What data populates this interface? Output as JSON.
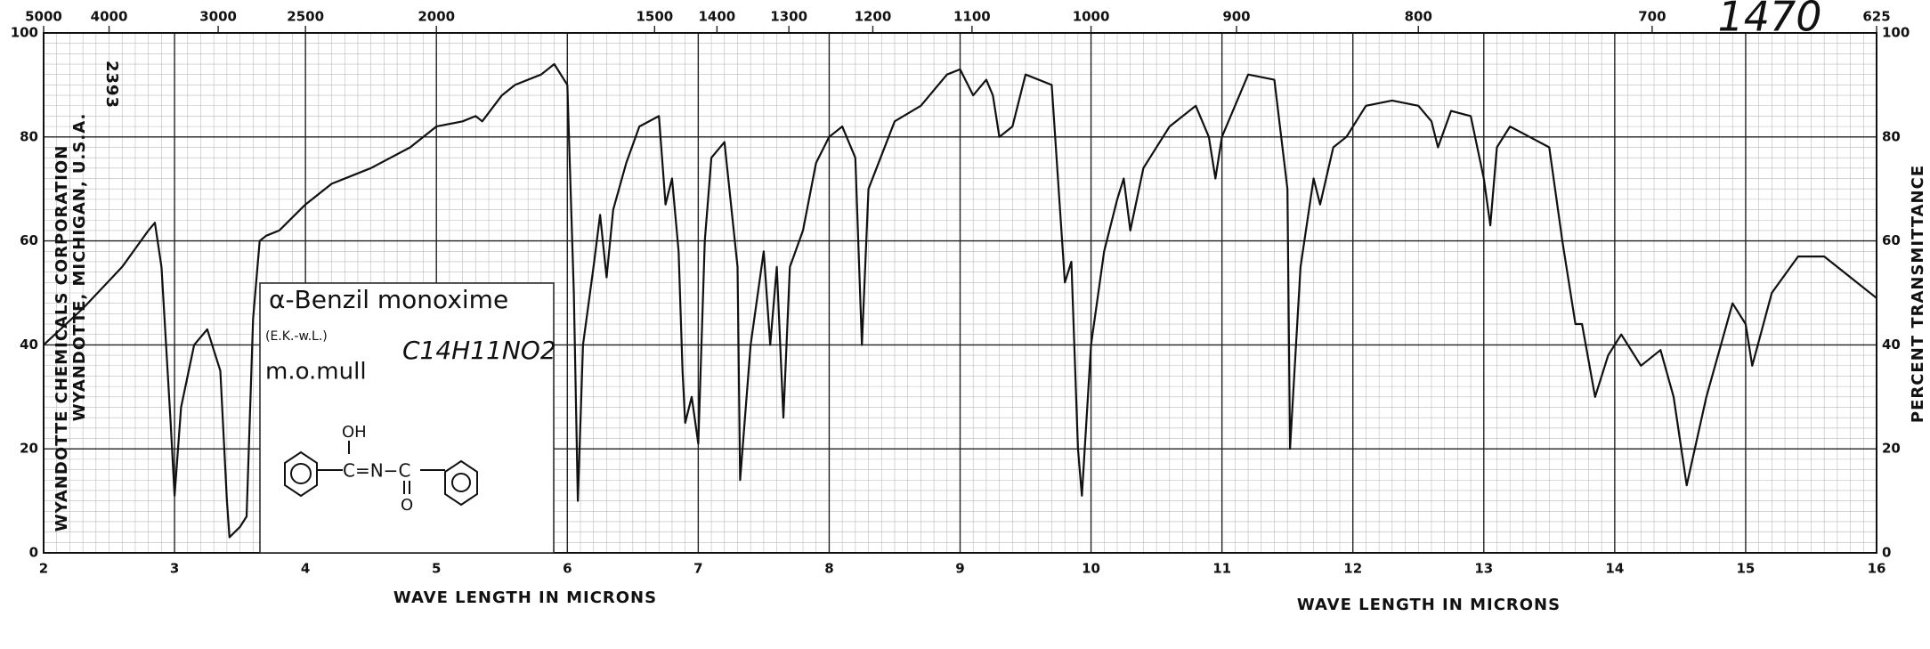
{
  "chart_data": {
    "type": "line",
    "company": "WYANDOTTE CHEMICALS CORPORATION",
    "location": "WYANDOTTE, MICHIGAN, U.S.A.",
    "chart_number": "2393",
    "sample_number": "1470",
    "compound": "α-Benzil monoxime",
    "source": "(E.K.-w.L.)",
    "phase": "m.o.mull",
    "formula": "C14H11NO2",
    "x_label_left": "WAVE LENGTH IN MICRONS",
    "x_label_right": "WAVE LENGTH IN MICRONS",
    "y_label": "PERCENT TRANSMITTANCE",
    "color": "#111111",
    "x": [
      2.0,
      2.3,
      2.6,
      2.8,
      2.85,
      2.9,
      2.97,
      3.0,
      3.05,
      3.15,
      3.25,
      3.35,
      3.4,
      3.42,
      3.5,
      3.55,
      3.6,
      3.65,
      3.7,
      3.8,
      4.0,
      4.2,
      4.5,
      4.8,
      5.0,
      5.2,
      5.3,
      5.35,
      5.5,
      5.6,
      5.8,
      5.9,
      6.0,
      6.05,
      6.08,
      6.12,
      6.2,
      6.25,
      6.3,
      6.35,
      6.45,
      6.55,
      6.7,
      6.75,
      6.8,
      6.85,
      6.88,
      6.9,
      6.95,
      7.0,
      7.05,
      7.1,
      7.2,
      7.3,
      7.32,
      7.4,
      7.5,
      7.55,
      7.6,
      7.65,
      7.7,
      7.8,
      7.9,
      8.0,
      8.1,
      8.2,
      8.25,
      8.3,
      8.5,
      8.7,
      8.9,
      9.0,
      9.1,
      9.2,
      9.25,
      9.3,
      9.4,
      9.5,
      9.7,
      9.8,
      9.85,
      9.9,
      9.93,
      10.0,
      10.1,
      10.2,
      10.25,
      10.3,
      10.4,
      10.6,
      10.8,
      10.9,
      10.95,
      11.0,
      11.2,
      11.4,
      11.5,
      11.52,
      11.6,
      11.7,
      11.75,
      11.85,
      11.95,
      12.1,
      12.3,
      12.5,
      12.6,
      12.65,
      12.75,
      12.9,
      13.0,
      13.05,
      13.1,
      13.2,
      13.35,
      13.5,
      13.6,
      13.7,
      13.75,
      13.85,
      13.95,
      14.05,
      14.2,
      14.35,
      14.45,
      14.55,
      14.7,
      14.9,
      15.0,
      15.05,
      15.2,
      15.4,
      15.6,
      15.8,
      16.0
    ],
    "values": [
      40,
      47,
      55,
      62,
      63.5,
      55,
      25,
      11,
      28,
      40,
      43,
      35,
      10,
      3,
      5,
      7,
      45,
      60,
      61,
      62,
      67,
      71,
      74,
      78,
      82,
      83,
      84,
      83,
      88,
      90,
      92,
      94,
      90,
      50,
      10,
      40,
      55,
      65,
      53,
      66,
      75,
      82,
      84,
      67,
      72,
      58,
      35,
      25,
      30,
      21,
      60,
      76,
      79,
      55,
      14,
      40,
      58,
      40,
      55,
      26,
      55,
      62,
      75,
      80,
      82,
      76,
      40,
      70,
      83,
      86,
      92,
      93,
      88,
      91,
      88,
      80,
      82,
      92,
      90,
      52,
      56,
      20,
      11,
      40,
      58,
      68,
      72,
      62,
      74,
      82,
      86,
      80,
      72,
      80,
      92,
      91,
      70,
      20,
      55,
      72,
      67,
      78,
      80,
      86,
      87,
      86,
      83,
      78,
      85,
      84,
      72,
      63,
      78,
      82,
      80,
      78,
      60,
      44,
      44,
      30,
      38,
      42,
      36,
      39,
      30,
      13,
      30,
      48,
      44,
      36,
      50,
      57,
      57,
      53,
      49
    ],
    "xlim": [
      2,
      16
    ],
    "ylim": [
      0,
      100
    ],
    "xticks": [
      2,
      3,
      4,
      5,
      6,
      7,
      8,
      9,
      10,
      11,
      12,
      13,
      14,
      15,
      16
    ],
    "yticks": [
      0,
      20,
      40,
      60,
      80,
      100
    ],
    "x2ticks": [
      5000,
      4000,
      3000,
      2500,
      2000,
      1500,
      1400,
      1300,
      1200,
      1100,
      1000,
      900,
      800,
      700,
      625
    ],
    "grid": true
  }
}
